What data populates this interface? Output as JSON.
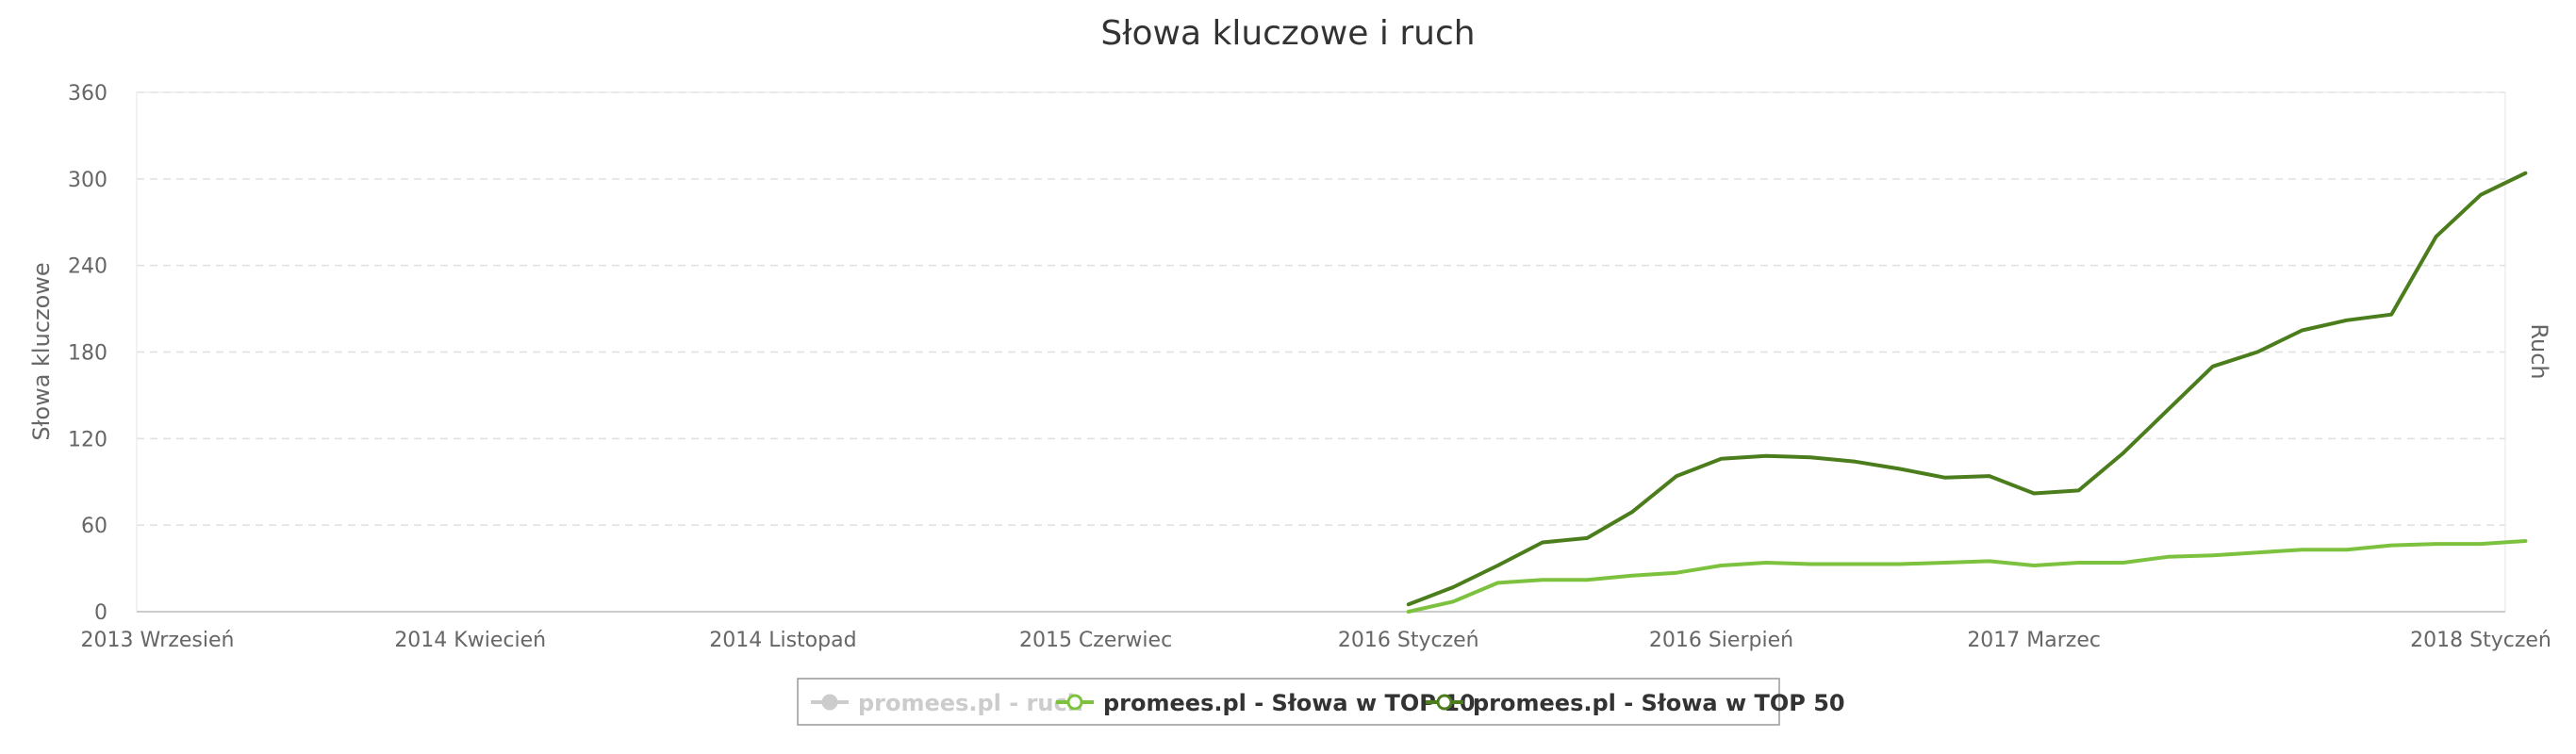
{
  "chart_data": {
    "type": "line",
    "title": "Słowa kluczowe i ruch",
    "ylabel": "Słowa kluczowe",
    "y2label": "Ruch",
    "ylim": [
      0,
      360
    ],
    "yticks": [
      0,
      60,
      120,
      180,
      240,
      300,
      360
    ],
    "x_range": [
      "2013-09",
      "2018-01"
    ],
    "x_ticks": [
      {
        "date": "2013-09",
        "label": "2013 Wrzesień"
      },
      {
        "date": "2014-04",
        "label": "2014 Kwiecień"
      },
      {
        "date": "2014-11",
        "label": "2014 Listopad"
      },
      {
        "date": "2015-06",
        "label": "2015 Czerwiec"
      },
      {
        "date": "2016-01",
        "label": "2016 Styczeń"
      },
      {
        "date": "2016-08",
        "label": "2016 Sierpień"
      },
      {
        "date": "2017-03",
        "label": "2017 Marzec"
      },
      {
        "date": "2018-01",
        "label": "2018 Styczeń"
      }
    ],
    "grid": true,
    "legend_position": "bottom-center",
    "series": [
      {
        "name": "promees.pl - ruch",
        "color": "#cccccc",
        "hidden": true,
        "points": []
      },
      {
        "name": "promees.pl - Słowa w TOP 10",
        "color": "#7dc23f",
        "points": [
          [
            "2016-01",
            0
          ],
          [
            "2016-02",
            7
          ],
          [
            "2016-03",
            20
          ],
          [
            "2016-04",
            22
          ],
          [
            "2016-05",
            22
          ],
          [
            "2016-06",
            25
          ],
          [
            "2016-07",
            27
          ],
          [
            "2016-08",
            32
          ],
          [
            "2016-09",
            34
          ],
          [
            "2016-10",
            33
          ],
          [
            "2016-11",
            33
          ],
          [
            "2016-12",
            33
          ],
          [
            "2017-01",
            34
          ],
          [
            "2017-02",
            35
          ],
          [
            "2017-03",
            32
          ],
          [
            "2017-04",
            34
          ],
          [
            "2017-05",
            34
          ],
          [
            "2017-06",
            38
          ],
          [
            "2017-07",
            39
          ],
          [
            "2017-08",
            41
          ],
          [
            "2017-09",
            43
          ],
          [
            "2017-10",
            43
          ],
          [
            "2017-11",
            46
          ],
          [
            "2017-12",
            47
          ],
          [
            "2018-01",
            47
          ],
          [
            "2018-02",
            49
          ]
        ]
      },
      {
        "name": "promees.pl - Słowa w TOP 50",
        "color": "#4b7d1c",
        "points": [
          [
            "2016-01",
            5
          ],
          [
            "2016-02",
            17
          ],
          [
            "2016-03",
            32
          ],
          [
            "2016-04",
            48
          ],
          [
            "2016-05",
            51
          ],
          [
            "2016-06",
            69
          ],
          [
            "2016-07",
            94
          ],
          [
            "2016-08",
            106
          ],
          [
            "2016-09",
            108
          ],
          [
            "2016-10",
            107
          ],
          [
            "2016-11",
            104
          ],
          [
            "2016-12",
            99
          ],
          [
            "2017-01",
            93
          ],
          [
            "2017-02",
            94
          ],
          [
            "2017-03",
            82
          ],
          [
            "2017-04",
            84
          ],
          [
            "2017-05",
            110
          ],
          [
            "2017-06",
            140
          ],
          [
            "2017-07",
            170
          ],
          [
            "2017-08",
            180
          ],
          [
            "2017-09",
            195
          ],
          [
            "2017-10",
            202
          ],
          [
            "2017-11",
            206
          ],
          [
            "2017-12",
            260
          ],
          [
            "2018-01",
            289
          ],
          [
            "2018-02",
            304
          ]
        ]
      }
    ]
  }
}
